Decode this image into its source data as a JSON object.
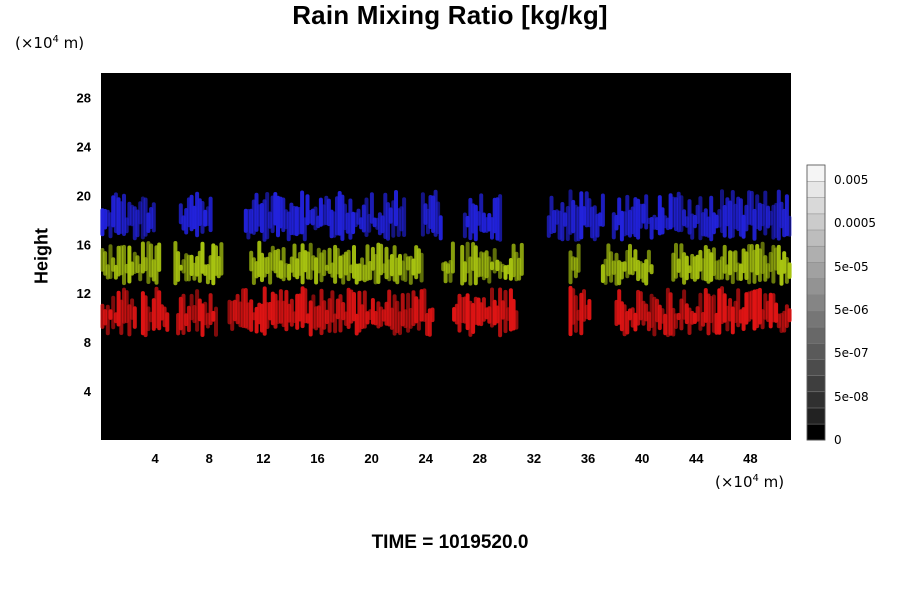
{
  "chart_data": {
    "type": "heatmap",
    "title": "Rain Mixing Ratio [kg/kg]",
    "ylabel": "Height",
    "x_unit_prefix": "(×10",
    "x_unit_exp": "4",
    "x_unit_suffix": " m)",
    "y_unit_prefix": "(×10",
    "y_unit_exp": "4",
    "y_unit_suffix": " m)",
    "footer": "TIME = 1019520.0",
    "xlim": [
      0,
      51
    ],
    "ylim": [
      0,
      30
    ],
    "xticks": [
      4,
      8,
      12,
      16,
      20,
      24,
      28,
      32,
      36,
      40,
      44,
      48
    ],
    "yticks": [
      4,
      8,
      12,
      16,
      20,
      24,
      28
    ],
    "background": "#000000",
    "colorbar": {
      "labels": [
        "0.005",
        "0.0005",
        "5e-05",
        "5e-06",
        "5e-07",
        "5e-08",
        "0"
      ],
      "levels": 17,
      "colors": [
        "#000000",
        "#ffffff"
      ]
    },
    "layers": [
      {
        "color": "#2222dd",
        "y_range": [
          16.2,
          20.5
        ],
        "x_segments": [
          [
            0,
            4.0
          ],
          [
            5.8,
            8.2
          ],
          [
            10.6,
            22.5
          ],
          [
            23.7,
            25.2
          ],
          [
            26.8,
            29.6
          ],
          [
            33.0,
            37.2
          ],
          [
            37.8,
            51.0
          ]
        ]
      },
      {
        "color": "#a8c410",
        "y_range": [
          12.6,
          16.3
        ],
        "x_segments": [
          [
            0,
            4.4
          ],
          [
            5.4,
            9.0
          ],
          [
            11.0,
            23.8
          ],
          [
            25.2,
            26.1
          ],
          [
            26.6,
            31.2
          ],
          [
            34.6,
            35.4
          ],
          [
            37.0,
            40.8
          ],
          [
            42.2,
            51.0
          ]
        ]
      },
      {
        "color": "#e01414",
        "y_range": [
          8.4,
          12.6
        ],
        "x_segments": [
          [
            0,
            2.6
          ],
          [
            3.0,
            5.0
          ],
          [
            5.6,
            8.6
          ],
          [
            9.4,
            24.6
          ],
          [
            26.0,
            30.8
          ],
          [
            34.6,
            36.2
          ],
          [
            38.0,
            51.0
          ]
        ]
      }
    ]
  }
}
